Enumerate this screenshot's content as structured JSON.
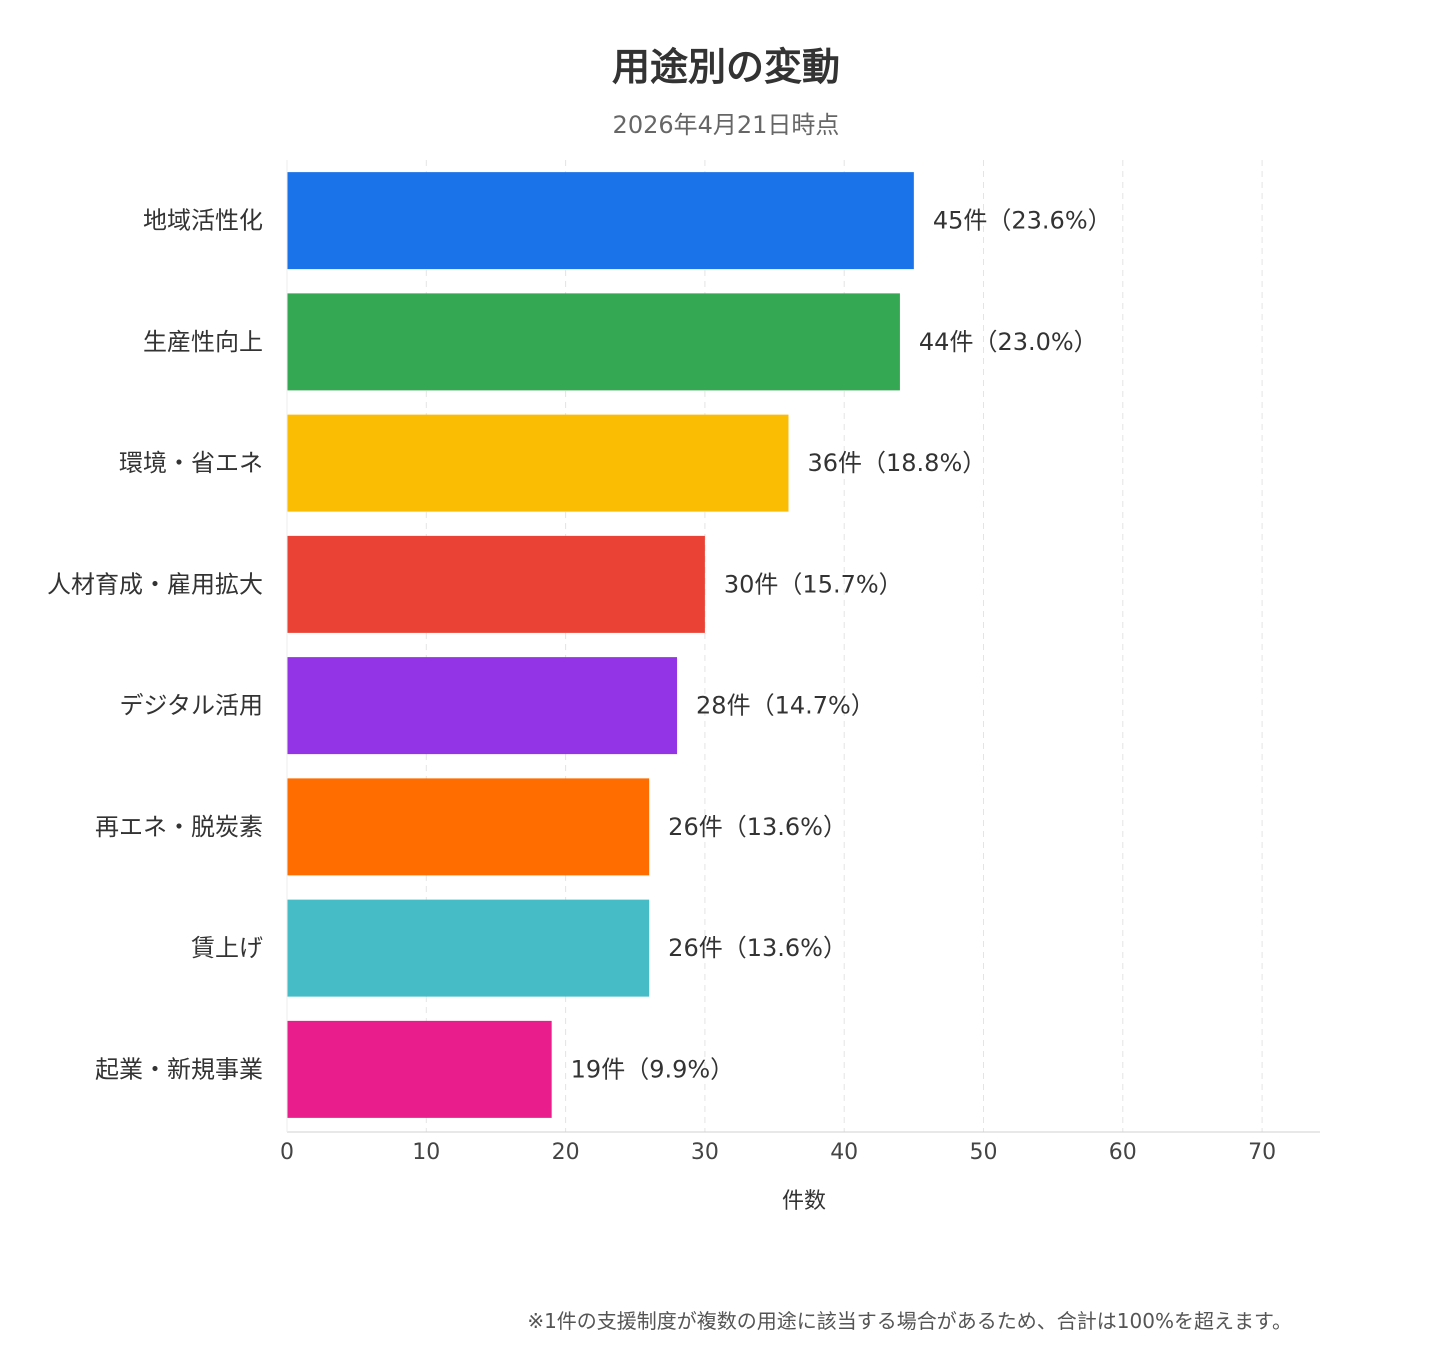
{
  "chart_data": {
    "type": "bar",
    "orientation": "horizontal",
    "title": "用途別の変動",
    "subtitle": "2026年4月21日時点",
    "xlabel": "件数",
    "ylabel": "",
    "xlim": [
      0,
      74
    ],
    "xticks": [
      0,
      10,
      20,
      30,
      40,
      50,
      60,
      70
    ],
    "grid": true,
    "categories": [
      "地域活性化",
      "生産性向上",
      "環境・省エネ",
      "人材育成・雇用拡大",
      "デジタル活用",
      "再エネ・脱炭素",
      "賃上げ",
      "起業・新規事業"
    ],
    "values": [
      45,
      44,
      36,
      30,
      28,
      26,
      26,
      19
    ],
    "data_labels": [
      "45件（23.6%）",
      "44件（23.0%）",
      "36件（18.8%）",
      "30件（15.7%）",
      "28件（14.7%）",
      "26件（13.6%）",
      "26件（13.6%）",
      "19件（9.9%）"
    ],
    "colors": [
      "#1a73e8",
      "#34a853",
      "#fbbc04",
      "#ea4335",
      "#9334e6",
      "#ff6d01",
      "#46bdc6",
      "#e91e8c"
    ]
  },
  "footnote": "※1件の支援制度が複数の用途に該当する場合があるため、合計は100%を超えます。"
}
